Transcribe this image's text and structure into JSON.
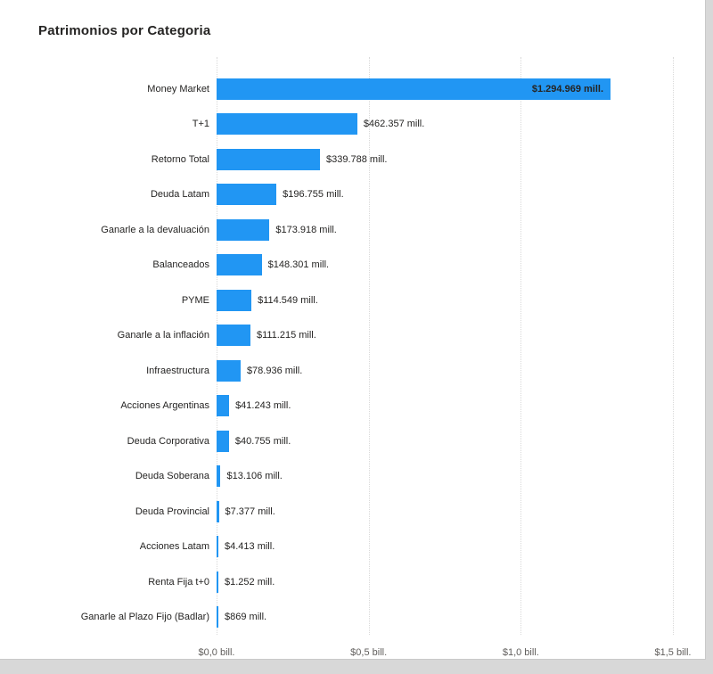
{
  "page": {
    "background_color": "#d8d8d8",
    "card_color": "#ffffff"
  },
  "chart_data": {
    "type": "bar",
    "orientation": "horizontal",
    "title": "Patrimonios por Categoria",
    "categories": [
      "Money Market",
      "T+1",
      "Retorno Total",
      "Deuda Latam",
      "Ganarle a la devaluación",
      "Balanceados",
      "PYME",
      "Ganarle a la inflación",
      "Infraestructura",
      "Acciones Argentinas",
      "Deuda Corporativa",
      "Deuda Soberana",
      "Deuda Provincial",
      "Acciones Latam",
      "Renta Fija t+0",
      "Ganarle al Plazo Fijo (Badlar)"
    ],
    "values": [
      1294969,
      462357,
      339788,
      196755,
      173918,
      148301,
      114549,
      111215,
      78936,
      41243,
      40755,
      13106,
      7377,
      4413,
      1252,
      869
    ],
    "value_labels": [
      "$1.294.969 mill.",
      "$462.357 mill.",
      "$339.788 mill.",
      "$196.755 mill.",
      "$173.918 mill.",
      "$148.301 mill.",
      "$114.549 mill.",
      "$111.215 mill.",
      "$78.936 mill.",
      "$41.243 mill.",
      "$40.755 mill.",
      "$13.106 mill.",
      "$7.377 mill.",
      "$4.413 mill.",
      "$1.252 mill.",
      "$869 mill."
    ],
    "unit": "mill.",
    "x_axis": {
      "max": 1500000,
      "ticks": [
        0,
        500000,
        1000000,
        1500000
      ],
      "tick_labels": [
        "$0,0 bill.",
        "$0,5 bill.",
        "$1,0 bill.",
        "$1,5 bill."
      ]
    },
    "grid": true,
    "legend": "none",
    "bar_color": "#2196F3",
    "label_color": "#252423",
    "axis_label_color": "#605E5C"
  }
}
